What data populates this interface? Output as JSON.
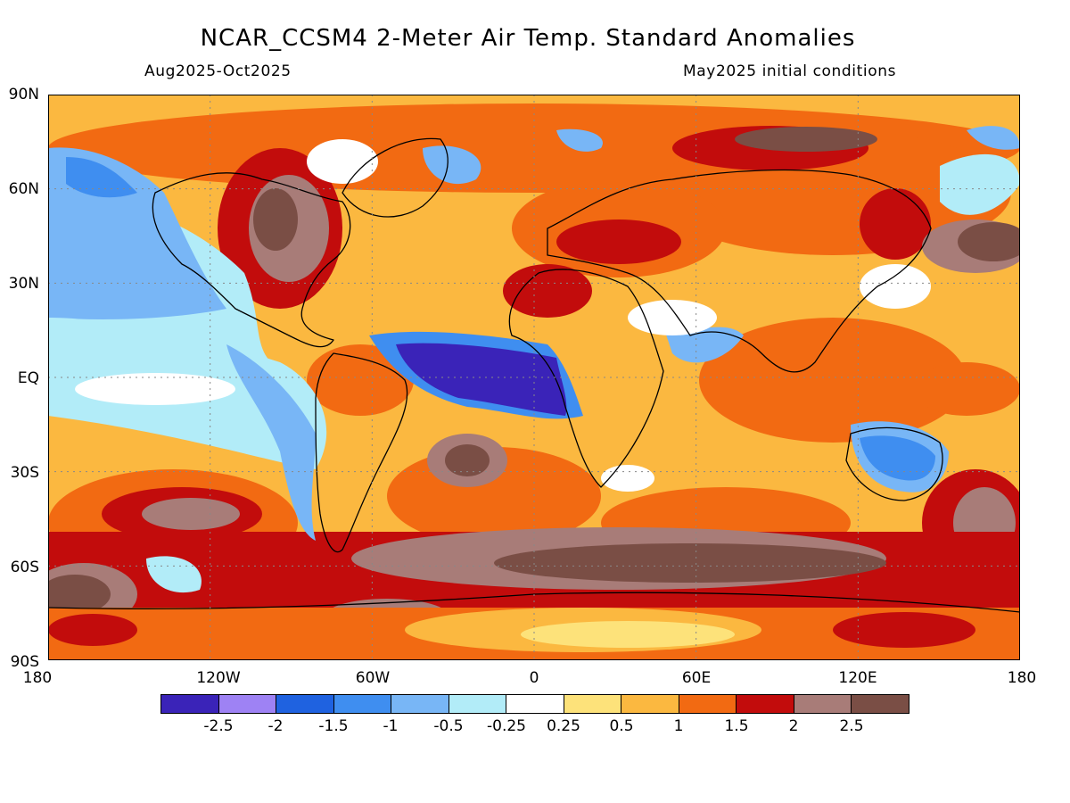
{
  "title": "NCAR_CCSM4 2-Meter Air Temp. Standard Anomalies",
  "period": "Aug2025-Oct2025",
  "initial_conditions": "May2025 initial conditions",
  "y_axis_labels": [
    "90N",
    "60N",
    "30N",
    "EQ",
    "30S",
    "60S",
    "90S"
  ],
  "x_axis_labels": [
    "180",
    "120W",
    "60W",
    "0",
    "60E",
    "120E",
    "180"
  ],
  "colorbar": {
    "labels": [
      "-2.5",
      "-2",
      "-1.5",
      "-1",
      "-0.5",
      "-0.25",
      "0.25",
      "0.5",
      "1",
      "1.5",
      "2",
      "2.5"
    ],
    "colors": [
      "#3a23b8",
      "#9e82f4",
      "#1f62e0",
      "#3f8ef0",
      "#78b6f6",
      "#b2ecf8",
      "#ffffff",
      "#fde27a",
      "#fbb840",
      "#f26a12",
      "#c20c0c",
      "#a87c78",
      "#7a4e45"
    ]
  }
}
